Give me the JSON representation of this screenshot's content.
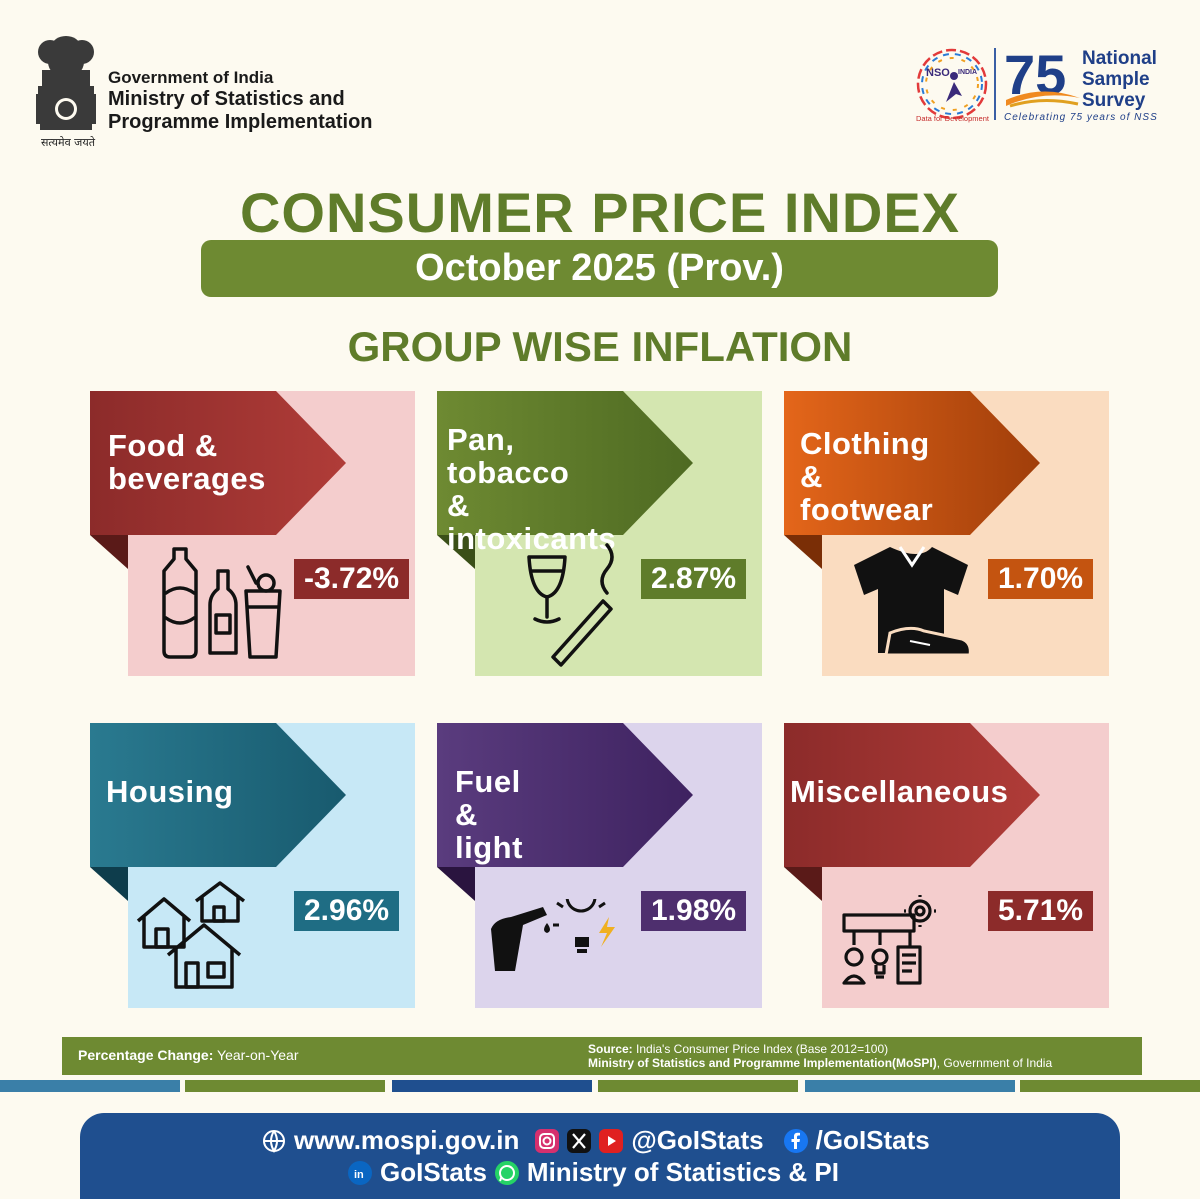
{
  "header": {
    "emblem_motto": "सत्यमेव जयते",
    "gov_line1": "Government of India",
    "gov_line2": "Ministry of Statistics and",
    "gov_line3": "Programme Implementation",
    "nso_text": "NSO",
    "nso_sub": "INDIA",
    "nso_tagline": "Data for Development",
    "nss_number": "75",
    "nss_line1": "National",
    "nss_line2": "Sample",
    "nss_line3": "Survey",
    "nss_tagline": "Celebrating 75 years of NSS"
  },
  "title": "CONSUMER PRICE INDEX",
  "period": "October 2025 (Prov.)",
  "section_title": "GROUP WISE INFLATION",
  "groups": [
    {
      "label_line1": "Food &",
      "label_line2": "beverages",
      "value": "-3.72%",
      "icon": "food-beverages-icon",
      "band_color": "#8c2b2a",
      "back_color": "#f4cdcd",
      "value_color": "#8c2b2a"
    },
    {
      "label_line1": "Pan, tobacco",
      "label_line2": "& intoxicants",
      "value": "2.87%",
      "icon": "tobacco-glass-icon",
      "band_color": "#5f7c2a",
      "back_color": "#d4e6b0",
      "value_color": "#5f7c2a"
    },
    {
      "label_line1": "Clothing",
      "label_line2": "& footwear",
      "value": "1.70%",
      "icon": "shirt-shoe-icon",
      "band_color": "#c45410",
      "back_color": "#fadcc0",
      "value_color": "#c45410"
    },
    {
      "label_line1": "Housing",
      "label_line2": "",
      "value": "2.96%",
      "icon": "houses-icon",
      "band_color": "#1f6d84",
      "back_color": "#c7e8f6",
      "value_color": "#1f6d84"
    },
    {
      "label_line1": "Fuel &",
      "label_line2": "light",
      "value": "1.98%",
      "icon": "fuel-bulb-icon",
      "band_color": "#4e2f6e",
      "back_color": "#dcd4ec",
      "value_color": "#4e2f6e"
    },
    {
      "label_line1": "Miscellaneous",
      "label_line2": "",
      "value": "5.71%",
      "icon": "misc-services-icon",
      "band_color": "#8c2b2a",
      "back_color": "#f4cdcd",
      "value_color": "#8c2b2a"
    }
  ],
  "footer": {
    "pct_label": "Percentage Change:",
    "pct_value": "Year-on-Year",
    "source_label": "Source:",
    "source_text": "India's Consumer Price Index (Base 2012=100)",
    "source_line2_bold": "Ministry of Statistics and Programme Implementation(MoSPI)",
    "source_line2_rest": ", Government of India",
    "website": "www.mospi.gov.in",
    "handle_1": "@GoIStats",
    "facebook": "/GoIStats",
    "linkedin": "GoIStats",
    "whatsapp": "Ministry of Statistics & PI"
  },
  "colors": {
    "olive": "#5f7c2a",
    "olive_band": "#6e8a32",
    "navy": "#1f4f8f",
    "background": "#fdfaf0"
  }
}
